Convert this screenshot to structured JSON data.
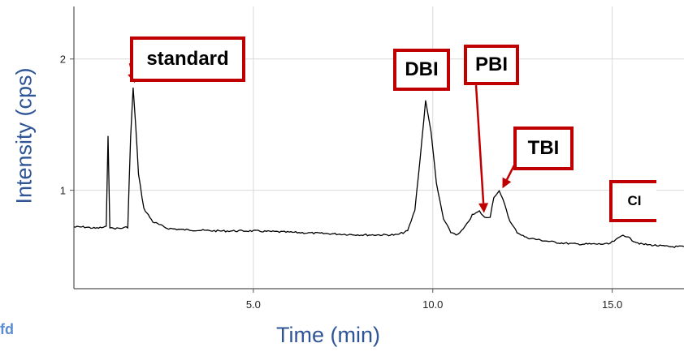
{
  "chart_data": {
    "type": "line",
    "title": "",
    "xlabel": "Time (min)",
    "ylabel": "Intensity (cps)",
    "xlim": [
      0,
      17
    ],
    "ylim": [
      0.25,
      2.4
    ],
    "x_ticks": [
      {
        "value": 5,
        "label": "5.0"
      },
      {
        "value": 10,
        "label": "10.0"
      },
      {
        "value": 15,
        "label": "15.0"
      }
    ],
    "y_ticks": [
      {
        "value": 1,
        "label": "1"
      },
      {
        "value": 2,
        "label": "2"
      }
    ],
    "grid": true,
    "series": [
      {
        "line_color": "#000000",
        "x": [
          0,
          0.3,
          0.6,
          0.9,
          0.95,
          1.0,
          1.05,
          1.1,
          1.3,
          1.5,
          1.58,
          1.65,
          1.72,
          1.8,
          1.95,
          2.2,
          2.6,
          3.0,
          4.0,
          5.0,
          6.0,
          7.0,
          8.0,
          9.0,
          9.3,
          9.5,
          9.65,
          9.8,
          9.95,
          10.1,
          10.3,
          10.5,
          10.7,
          10.9,
          11.1,
          11.3,
          11.45,
          11.6,
          11.7,
          11.85,
          12.0,
          12.15,
          12.35,
          12.6,
          13.0,
          13.5,
          14.0,
          14.5,
          14.9,
          15.1,
          15.3,
          15.4,
          15.55,
          15.8,
          16.2,
          16.6,
          17.0
        ],
        "y": [
          0.72,
          0.72,
          0.71,
          0.72,
          1.42,
          0.72,
          0.71,
          0.71,
          0.71,
          0.72,
          1.4,
          1.78,
          1.5,
          1.12,
          0.86,
          0.76,
          0.71,
          0.7,
          0.69,
          0.69,
          0.68,
          0.67,
          0.66,
          0.66,
          0.69,
          0.85,
          1.25,
          1.68,
          1.45,
          1.05,
          0.78,
          0.68,
          0.66,
          0.72,
          0.81,
          0.84,
          0.79,
          0.8,
          0.95,
          0.99,
          0.9,
          0.76,
          0.68,
          0.64,
          0.62,
          0.6,
          0.59,
          0.59,
          0.59,
          0.62,
          0.66,
          0.65,
          0.62,
          0.59,
          0.58,
          0.57,
          0.57
        ]
      }
    ],
    "annotations": [
      {
        "label": "standard",
        "target_x": 1.65,
        "target_y": 1.78
      },
      {
        "label": "DBI"
      },
      {
        "label": "PBI",
        "target_x": 11.45,
        "target_y": 0.79
      },
      {
        "label": "TBI",
        "target_x": 11.85,
        "target_y": 0.99
      },
      {
        "label": "CI"
      }
    ],
    "colors": {
      "annotation": "#c00000",
      "axis_label": "#2f5597",
      "grid": "#d9d9d9"
    }
  },
  "overlay": {
    "fragment_text": "fd"
  }
}
